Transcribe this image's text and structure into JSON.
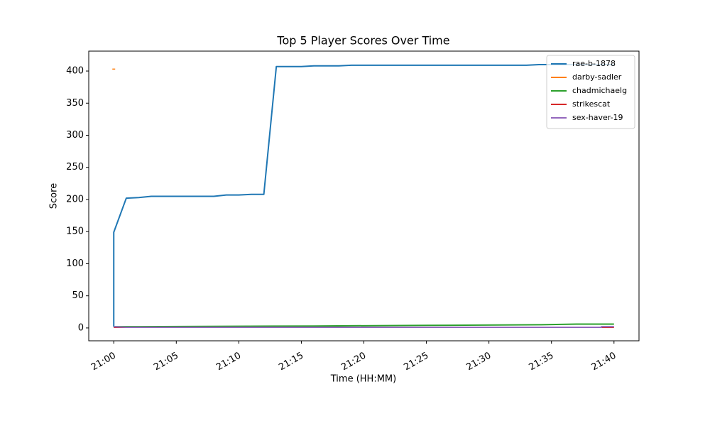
{
  "chart_data": {
    "type": "line",
    "title": "Top 5 Player Scores Over Time",
    "x_label": "Time (HH:MM)",
    "y_label": "Score",
    "xlim": [
      "20:58",
      "21:42"
    ],
    "xticks": [
      "21:00",
      "21:05",
      "21:10",
      "21:15",
      "21:20",
      "21:25",
      "21:30",
      "21:35",
      "21:40"
    ],
    "ylim": [
      -20,
      431
    ],
    "yticks": [
      0,
      50,
      100,
      150,
      200,
      250,
      300,
      350,
      400
    ],
    "legend": "upper right",
    "series": [
      {
        "name": "rae-b-1878",
        "color": "#1f77b4",
        "x": [
          "21:00",
          "21:00",
          "21:01",
          "21:02",
          "21:03",
          "21:08",
          "21:09",
          "21:10",
          "21:11",
          "21:12",
          "21:13",
          "21:15",
          "21:16",
          "21:18",
          "21:19",
          "21:33",
          "21:34",
          "21:40"
        ],
        "values": [
          2,
          149,
          202,
          203,
          205,
          205,
          207,
          207,
          208,
          208,
          407,
          407,
          408,
          408,
          409,
          409,
          410,
          410
        ]
      },
      {
        "name": "darby-sadler",
        "color": "#ff7f0e",
        "x": [
          "21:00"
        ],
        "values": [
          403
        ]
      },
      {
        "name": "chadmichaelg",
        "color": "#2ca02c",
        "x": [
          "21:00",
          "21:02",
          "21:16",
          "21:25",
          "21:34",
          "21:37",
          "21:40"
        ],
        "values": [
          2,
          2,
          3,
          4,
          5,
          6,
          6
        ]
      },
      {
        "name": "strikescat",
        "color": "#d62728",
        "x": [
          "21:00",
          "21:40"
        ],
        "values": [
          1,
          1
        ]
      },
      {
        "name": "sex-haver-19",
        "color": "#9467bd",
        "x": [
          "21:00",
          "21:01",
          "21:39",
          "21:39",
          "21:40"
        ],
        "values": [
          2,
          1,
          1,
          2,
          2
        ]
      }
    ]
  }
}
